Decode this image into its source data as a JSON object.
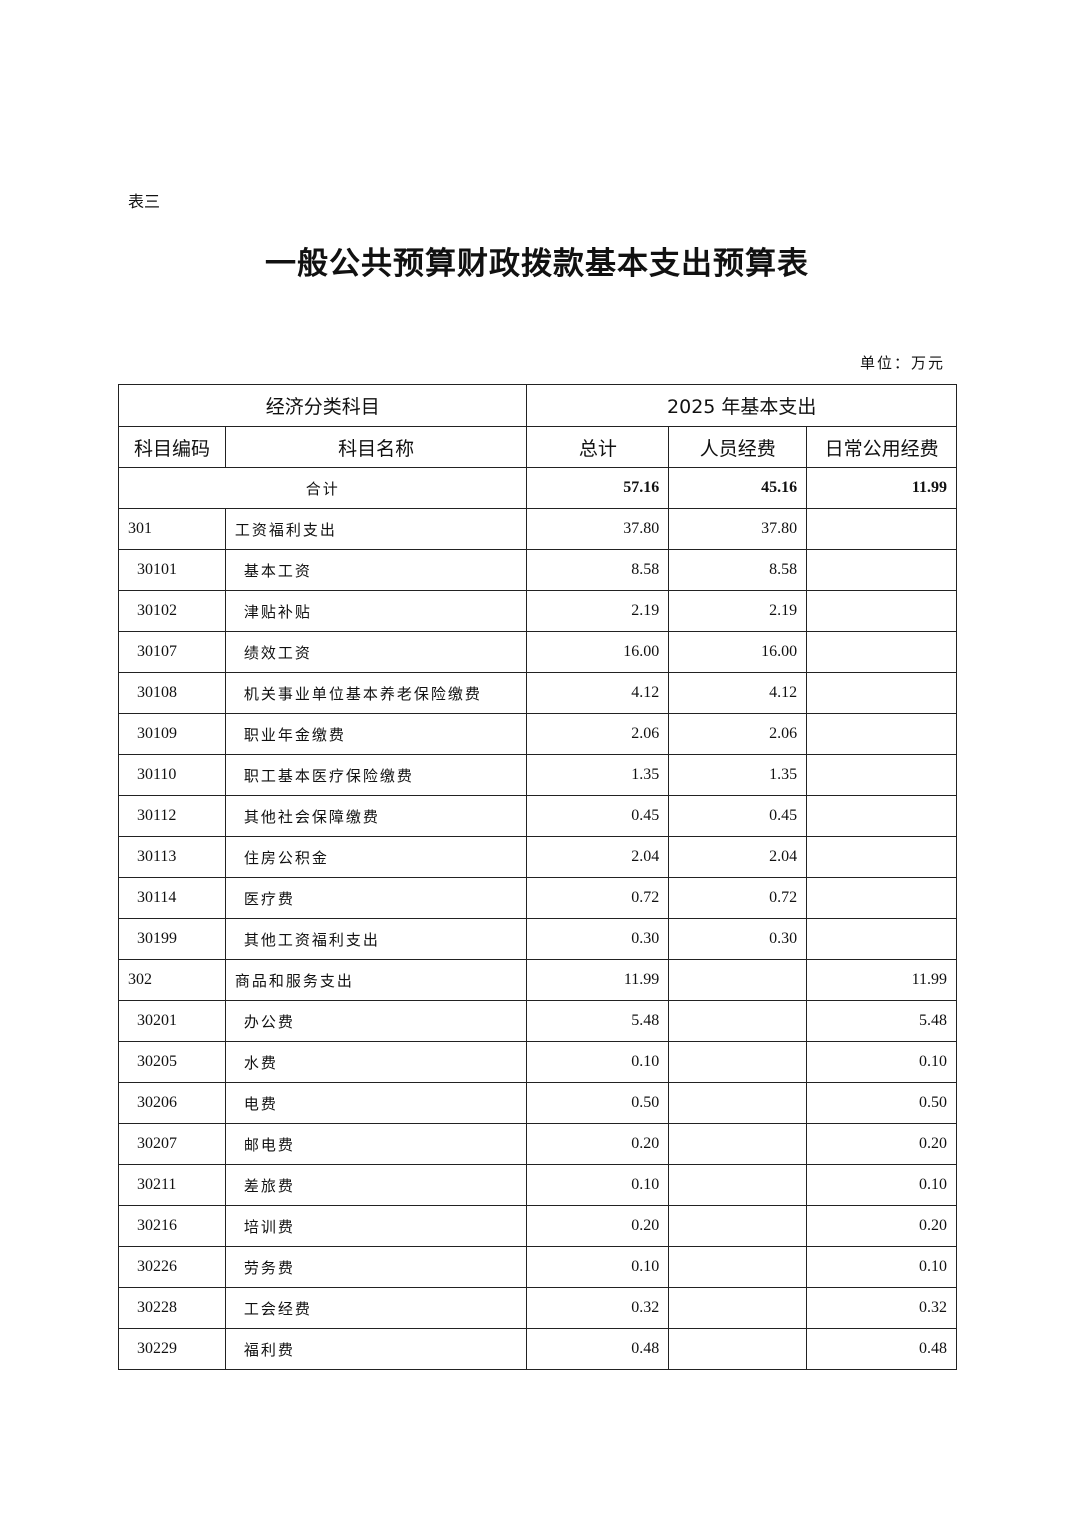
{
  "doc": {
    "label": "表三",
    "title": "一般公共预算财政拨款基本支出预算表",
    "unit": "单位：万元"
  },
  "table": {
    "group_headers": [
      "经济分类科目",
      "2025 年基本支出"
    ],
    "headers": [
      "科目编码",
      "科目名称",
      "总计",
      "人员经费",
      "日常公用经费"
    ],
    "total": {
      "label": "合计",
      "total": "57.16",
      "personnel": "45.16",
      "public": "11.99"
    },
    "rows": [
      {
        "code": "301",
        "name": "工资福利支出",
        "total": "37.80",
        "personnel": "37.80",
        "public": "",
        "level": 1
      },
      {
        "code": "30101",
        "name": "基本工资",
        "total": "8.58",
        "personnel": "8.58",
        "public": "",
        "level": 2
      },
      {
        "code": "30102",
        "name": "津贴补贴",
        "total": "2.19",
        "personnel": "2.19",
        "public": "",
        "level": 2
      },
      {
        "code": "30107",
        "name": "绩效工资",
        "total": "16.00",
        "personnel": "16.00",
        "public": "",
        "level": 2
      },
      {
        "code": "30108",
        "name": "机关事业单位基本养老保险缴费",
        "total": "4.12",
        "personnel": "4.12",
        "public": "",
        "level": 2
      },
      {
        "code": "30109",
        "name": "职业年金缴费",
        "total": "2.06",
        "personnel": "2.06",
        "public": "",
        "level": 2
      },
      {
        "code": "30110",
        "name": "职工基本医疗保险缴费",
        "total": "1.35",
        "personnel": "1.35",
        "public": "",
        "level": 2
      },
      {
        "code": "30112",
        "name": "其他社会保障缴费",
        "total": "0.45",
        "personnel": "0.45",
        "public": "",
        "level": 2
      },
      {
        "code": "30113",
        "name": "住房公积金",
        "total": "2.04",
        "personnel": "2.04",
        "public": "",
        "level": 2
      },
      {
        "code": "30114",
        "name": "医疗费",
        "total": "0.72",
        "personnel": "0.72",
        "public": "",
        "level": 2
      },
      {
        "code": "30199",
        "name": "其他工资福利支出",
        "total": "0.30",
        "personnel": "0.30",
        "public": "",
        "level": 2
      },
      {
        "code": "302",
        "name": "商品和服务支出",
        "total": "11.99",
        "personnel": "",
        "public": "11.99",
        "level": 1
      },
      {
        "code": "30201",
        "name": "办公费",
        "total": "5.48",
        "personnel": "",
        "public": "5.48",
        "level": 2
      },
      {
        "code": "30205",
        "name": "水费",
        "total": "0.10",
        "personnel": "",
        "public": "0.10",
        "level": 2
      },
      {
        "code": "30206",
        "name": "电费",
        "total": "0.50",
        "personnel": "",
        "public": "0.50",
        "level": 2
      },
      {
        "code": "30207",
        "name": "邮电费",
        "total": "0.20",
        "personnel": "",
        "public": "0.20",
        "level": 2
      },
      {
        "code": "30211",
        "name": "差旅费",
        "total": "0.10",
        "personnel": "",
        "public": "0.10",
        "level": 2
      },
      {
        "code": "30216",
        "name": "培训费",
        "total": "0.20",
        "personnel": "",
        "public": "0.20",
        "level": 2
      },
      {
        "code": "30226",
        "name": "劳务费",
        "total": "0.10",
        "personnel": "",
        "public": "0.10",
        "level": 2
      },
      {
        "code": "30228",
        "name": "工会经费",
        "total": "0.32",
        "personnel": "",
        "public": "0.32",
        "level": 2
      },
      {
        "code": "30229",
        "name": "福利费",
        "total": "0.48",
        "personnel": "",
        "public": "0.48",
        "level": 2
      }
    ]
  }
}
